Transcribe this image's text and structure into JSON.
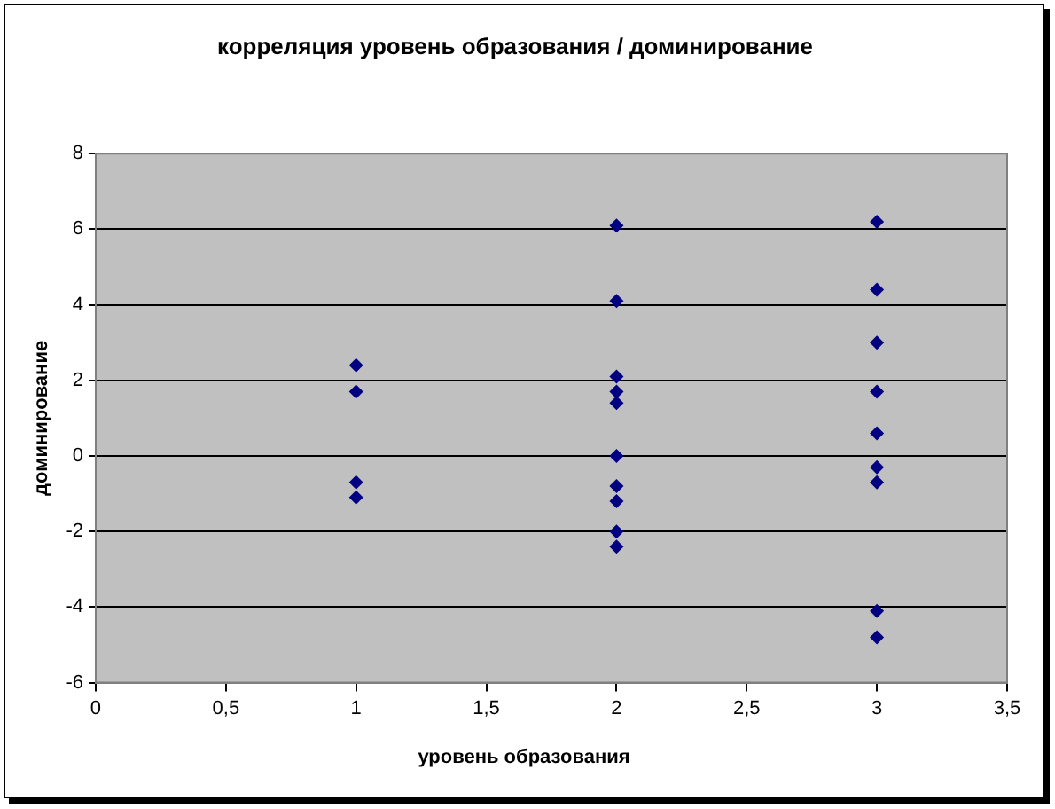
{
  "chart_data": {
    "type": "scatter",
    "title": "корреляция уровень образования / доминирование",
    "xlabel": "уровень образования",
    "ylabel": "доминирование",
    "series": [
      {
        "color": "#000080",
        "x": [
          1,
          1,
          1,
          1,
          2,
          2,
          2,
          2,
          2,
          2,
          2,
          2,
          2,
          2,
          3,
          3,
          3,
          3,
          3,
          3,
          3,
          3,
          3
        ],
        "values": [
          2.4,
          1.7,
          -0.7,
          -1.1,
          6.1,
          4.1,
          2.1,
          1.7,
          1.4,
          0,
          -0.8,
          -1.2,
          -2.0,
          -2.4,
          6.2,
          4.4,
          3.0,
          1.7,
          0.6,
          -0.3,
          -0.7,
          -4.1,
          -4.8
        ]
      }
    ],
    "xlim": [
      0,
      3.5
    ],
    "xticks": [
      0,
      {
        "value": 0.5,
        "label": "0,5"
      },
      1,
      {
        "value": 1.5,
        "label": "1,5"
      },
      2,
      {
        "value": 2.5,
        "label": "2,5"
      },
      3,
      {
        "value": 3.5,
        "label": "3,5"
      }
    ],
    "ylim": [
      -6,
      8
    ],
    "yticks": [
      -6,
      -4,
      -2,
      0,
      2,
      4,
      6,
      8
    ],
    "grid": "y",
    "marker": "diamond",
    "legend": false
  }
}
